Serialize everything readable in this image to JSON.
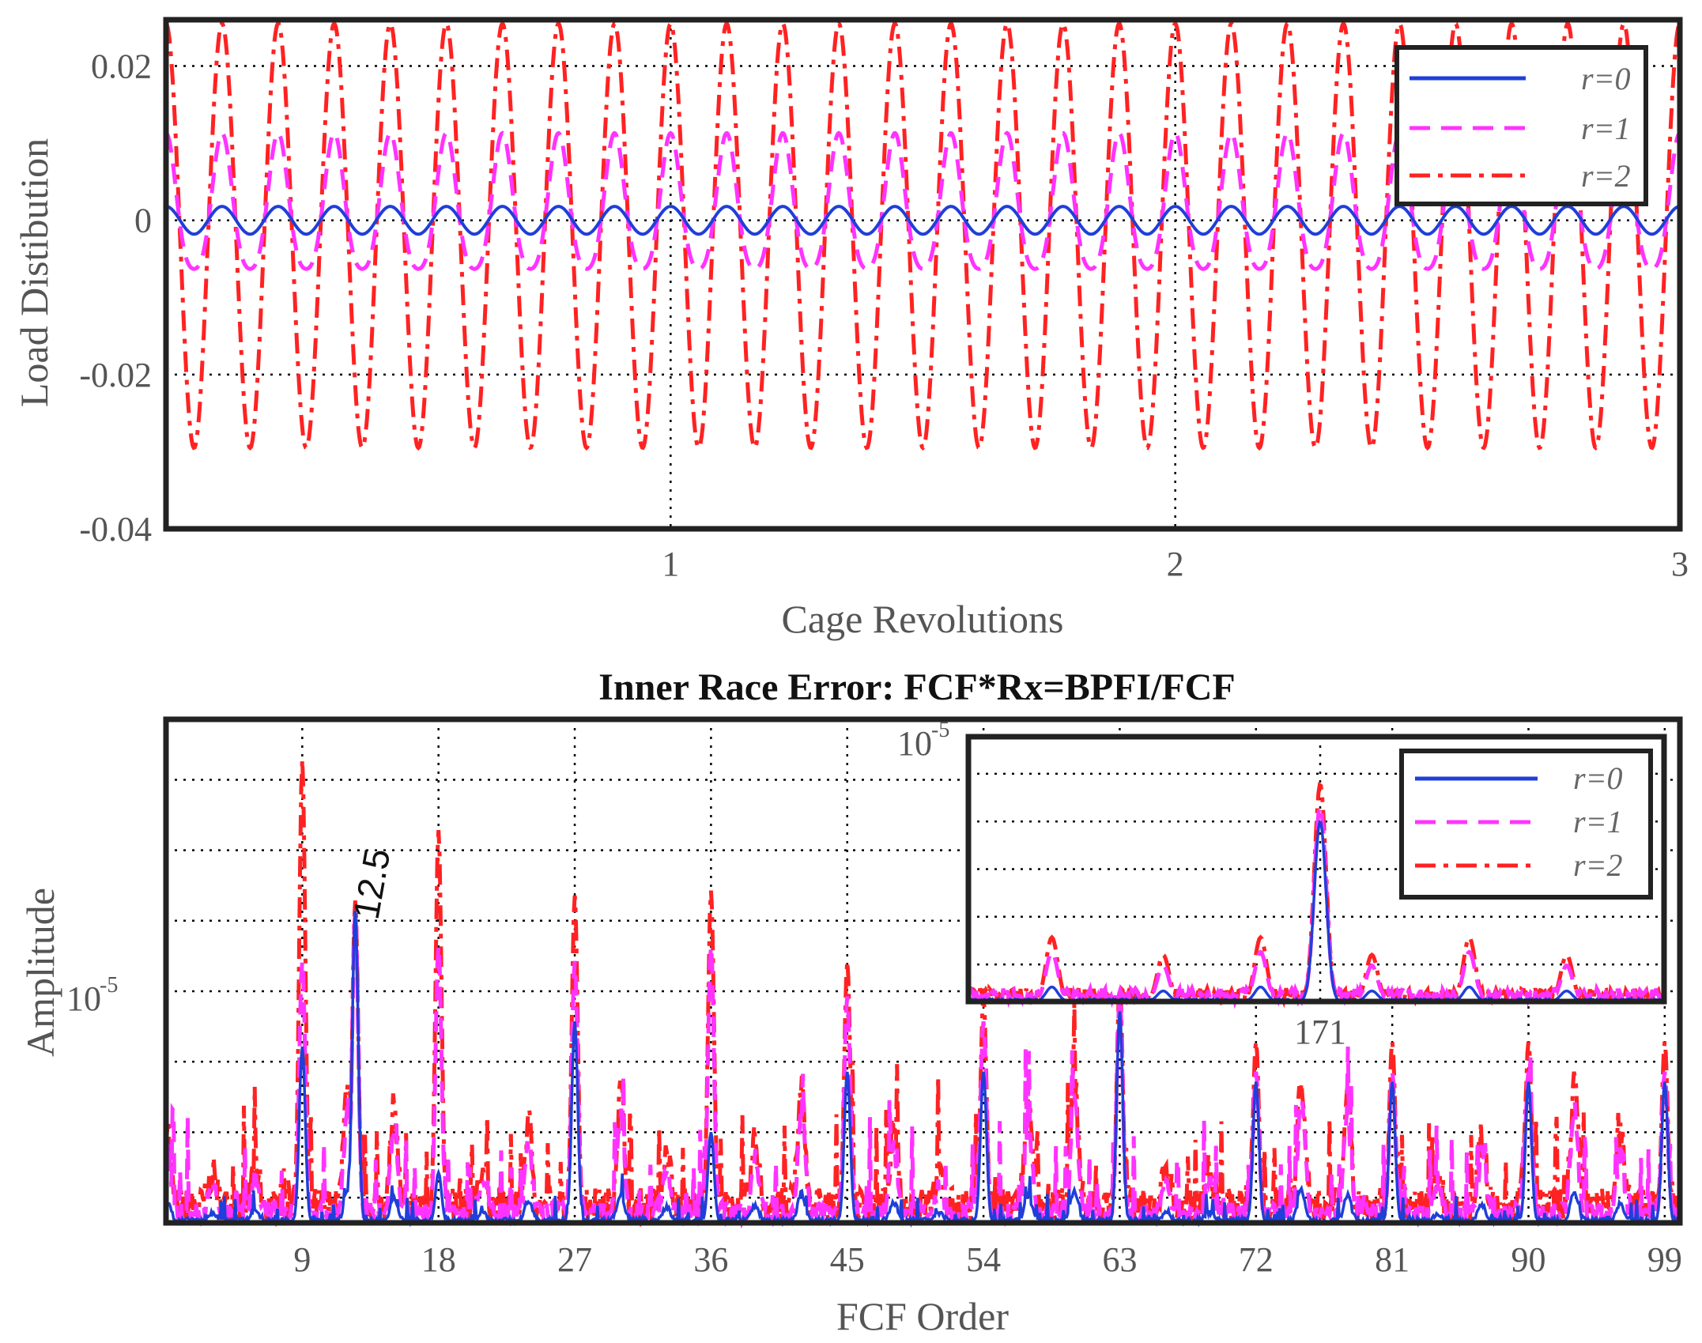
{
  "chart_data": [
    {
      "type": "line",
      "title": "",
      "xlabel": "Cage Revolutions",
      "ylabel": "Load Distibution",
      "xlim": [
        0,
        3
      ],
      "ylim": [
        -0.04,
        0.026
      ],
      "xticks": [
        1,
        2,
        3
      ],
      "xtick_labels": [
        "1",
        "2",
        "3"
      ],
      "yticks": [
        0.02,
        0,
        -0.02,
        -0.04
      ],
      "ytick_labels": [
        "0.02",
        "0",
        "-0.02",
        "-0.04"
      ],
      "grid": true,
      "legend_position": "top-right",
      "series": [
        {
          "name": "r=0",
          "color": "#1f3fd8",
          "style": "solid",
          "amplitude": 0.0018,
          "offset": 0.0,
          "cycles_per_rev": 9
        },
        {
          "name": "r=1",
          "color": "#ff33ff",
          "style": "dashed",
          "amplitude": 0.0088,
          "offset": 0.001,
          "cycles_per_rev": 9
        },
        {
          "name": "r=2",
          "color": "#ff2222",
          "style": "dashdot",
          "amplitude": 0.0275,
          "offset": -0.002,
          "cycles_per_rev": 9
        }
      ]
    },
    {
      "type": "line",
      "title": "Inner Race Error: FCF*Rx=BPFI/FCF",
      "xlabel": "FCF Order",
      "ylabel": "Amplitude",
      "xlim": [
        0,
        100
      ],
      "y_scale": "log",
      "ytick_labels": [
        "10",
        "-5"
      ],
      "xticks": [
        9,
        18,
        27,
        36,
        45,
        54,
        63,
        72,
        81,
        90,
        99
      ],
      "xtick_labels": [
        "9",
        "18",
        "27",
        "36",
        "45",
        "54",
        "63",
        "72",
        "81",
        "90",
        "99"
      ],
      "grid": true,
      "annotation": "12.5",
      "legend_position": "top-right",
      "series": [
        {
          "name": "r=0",
          "color": "#1f3fd8",
          "style": "solid"
        },
        {
          "name": "r=1",
          "color": "#ff33ff",
          "style": "dashed"
        },
        {
          "name": "r=2",
          "color": "#ff2222",
          "style": "dashdot"
        }
      ],
      "peaks": [
        {
          "x": 9,
          "r0": 0.35,
          "r1": 0.52,
          "r2": 0.92
        },
        {
          "x": 12.5,
          "r0": 0.62,
          "r1": 0.62,
          "r2": 0.64
        },
        {
          "x": 18,
          "r0": 0.1,
          "r1": 0.55,
          "r2": 0.78
        },
        {
          "x": 27,
          "r0": 0.4,
          "r1": 0.52,
          "r2": 0.65
        },
        {
          "x": 36,
          "r0": 0.18,
          "r1": 0.55,
          "r2": 0.66
        },
        {
          "x": 45,
          "r0": 0.3,
          "r1": 0.45,
          "r2": 0.52
        },
        {
          "x": 54,
          "r0": 0.3,
          "r1": 0.4,
          "r2": 0.45
        },
        {
          "x": 63,
          "r0": 0.42,
          "r1": 0.45,
          "r2": 0.48
        },
        {
          "x": 72,
          "r0": 0.28,
          "r1": 0.3,
          "r2": 0.36
        },
        {
          "x": 81,
          "r0": 0.28,
          "r1": 0.3,
          "r2": 0.36
        },
        {
          "x": 90,
          "r0": 0.28,
          "r1": 0.3,
          "r2": 0.36
        },
        {
          "x": 99,
          "r0": 0.28,
          "r1": 0.3,
          "r2": 0.36
        }
      ],
      "inset": {
        "ytick_labels": [
          "10",
          "-5"
        ],
        "xtick_labels": [
          "171"
        ],
        "peak_x": 171,
        "series": [
          "r=0",
          "r=1",
          "r=2"
        ]
      }
    }
  ]
}
